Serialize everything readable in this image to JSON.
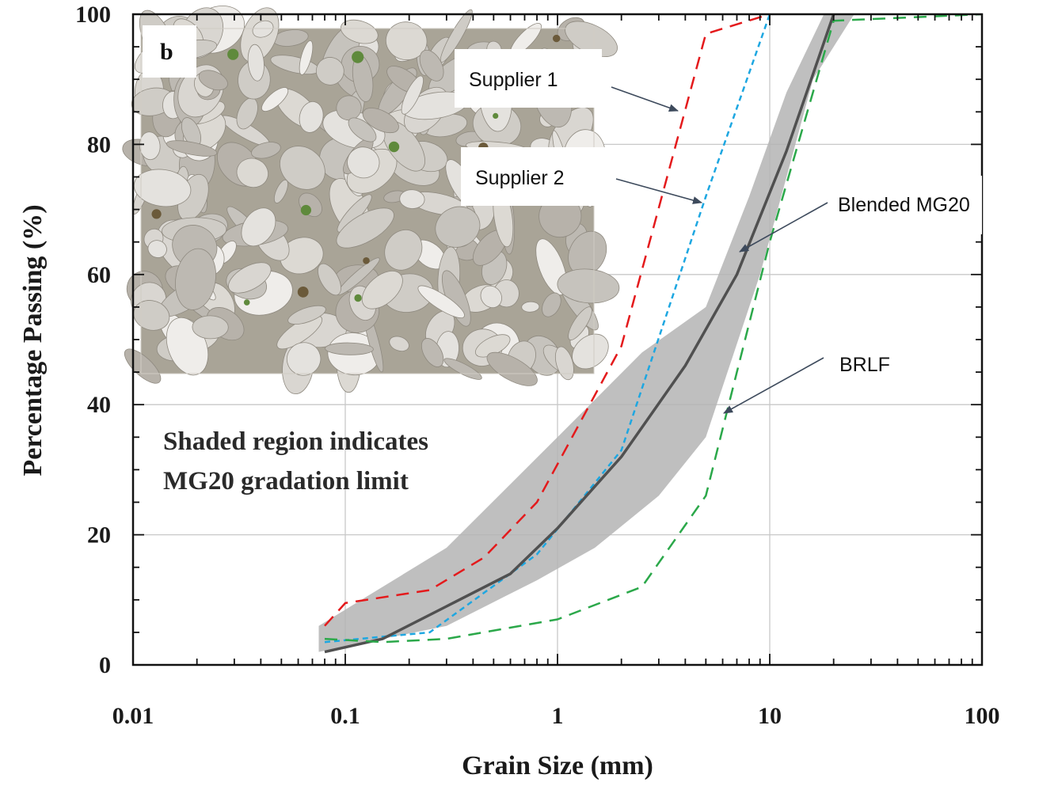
{
  "chart_data": {
    "type": "line",
    "panel_label": "b",
    "xlabel": "Grain Size (mm)",
    "ylabel": "Percentage Passing (%)",
    "x_scale": "log",
    "xlim": [
      0.01,
      100
    ],
    "ylim": [
      0,
      100
    ],
    "x_ticks": [
      "0.01",
      "0.1",
      "1",
      "10",
      "100"
    ],
    "x_tick_values": [
      0.01,
      0.1,
      1,
      10,
      100
    ],
    "y_ticks": [
      "0",
      "20",
      "40",
      "60",
      "80",
      "100"
    ],
    "y_tick_values": [
      0,
      20,
      40,
      60,
      80,
      100
    ],
    "grid": true,
    "annotation": [
      "Shaded region indicates",
      "MG20 gradation limit"
    ],
    "shaded_band": {
      "name": "MG20 gradation limit",
      "color": "#b4b4b4",
      "lower": {
        "x": [
          0.075,
          0.3,
          0.8,
          1.5,
          3,
          5,
          9,
          16,
          25
        ],
        "y": [
          2,
          6,
          13,
          18,
          26,
          35,
          60,
          90,
          100
        ]
      },
      "upper": {
        "x": [
          0.075,
          0.3,
          1,
          2.5,
          5,
          8,
          12,
          18
        ],
        "y": [
          6,
          18,
          35,
          48,
          55,
          72,
          88,
          100
        ]
      }
    },
    "series": [
      {
        "name": "Supplier 1",
        "color": "#e41a1c",
        "dash": "16,10",
        "width": 2.5,
        "x": [
          0.08,
          0.1,
          0.25,
          0.45,
          0.8,
          2,
          5,
          10
        ],
        "y": [
          6,
          9.5,
          11.5,
          16.5,
          25,
          49,
          97,
          100
        ]
      },
      {
        "name": "Supplier 2",
        "color": "#1ea7e1",
        "dash": "7,5",
        "width": 2.5,
        "x": [
          0.08,
          0.25,
          0.8,
          2,
          5,
          10
        ],
        "y": [
          3.5,
          5,
          17,
          33,
          72,
          100
        ]
      },
      {
        "name": "Blended MG20",
        "color": "#505050",
        "dash": "",
        "width": 3.5,
        "x": [
          0.08,
          0.15,
          0.3,
          0.6,
          1,
          2,
          4,
          7,
          12,
          20
        ],
        "y": [
          2,
          4,
          9,
          14,
          21,
          32,
          46,
          60,
          79,
          100
        ]
      },
      {
        "name": "BRLF",
        "color": "#2ba84a",
        "dash": "16,10",
        "width": 2.5,
        "x": [
          0.08,
          0.15,
          0.3,
          1,
          2.5,
          5,
          7,
          10,
          20,
          100
        ],
        "y": [
          4,
          3.5,
          4,
          7,
          12,
          26,
          45,
          65,
          99,
          100
        ]
      }
    ],
    "callouts": [
      {
        "label": "Supplier 1",
        "target_series": "Supplier 1"
      },
      {
        "label": "Supplier 2",
        "target_series": "Supplier 2"
      },
      {
        "label": "Blended MG20",
        "target_series": "Blended MG20"
      },
      {
        "label": "BRLF",
        "target_series": "BRLF"
      }
    ],
    "inset_photo": "crushed-gravel-aggregate-photo"
  }
}
